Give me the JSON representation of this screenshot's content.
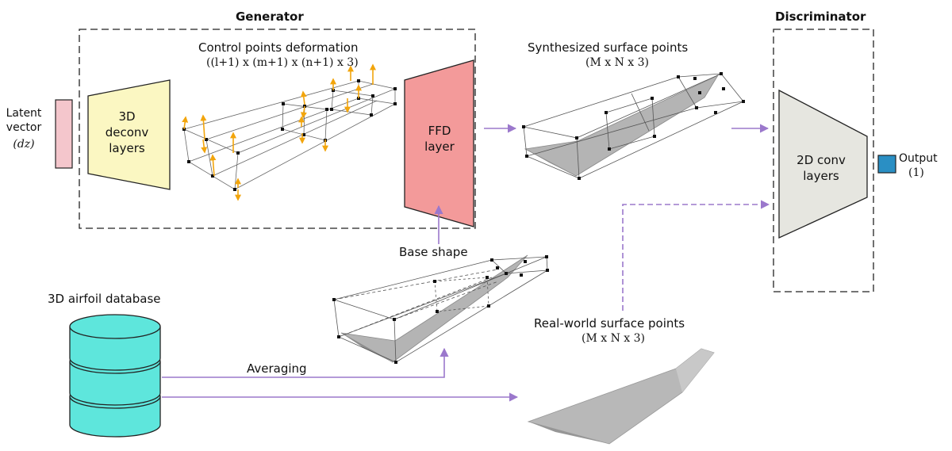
{
  "generator": {
    "title": "Generator",
    "deconv": "3D\ndeconv\nlayers",
    "ffd": "FFD\nlayer",
    "cp_title": "Control points deformation",
    "cp_dims": "((l+1) x (m+1) x (n+1) x 3)"
  },
  "discriminator": {
    "title": "Discriminator",
    "conv": "2D conv\nlayers"
  },
  "latent": {
    "label": "Latent\nvector",
    "dim": "(dz)"
  },
  "synth": {
    "title": "Synthesized surface points",
    "dims": "(M x N x 3)"
  },
  "real": {
    "title": "Real-world surface points",
    "dims": "(M x N x 3)"
  },
  "output": {
    "label": "Output",
    "dim": "(1)"
  },
  "base_shape": "Base shape",
  "database": "3D airfoil database",
  "averaging": "Averaging",
  "colors": {
    "latent": "#f4c6cc",
    "deconv": "#fbf7c2",
    "ffd": "#f39a9a",
    "conv": "#e6e6e0",
    "output": "#2a8fc4",
    "db": "#5ee6dc",
    "arrow": "#9b78cc",
    "orange": "#f2a50c",
    "wing": "#a5a5a5"
  }
}
